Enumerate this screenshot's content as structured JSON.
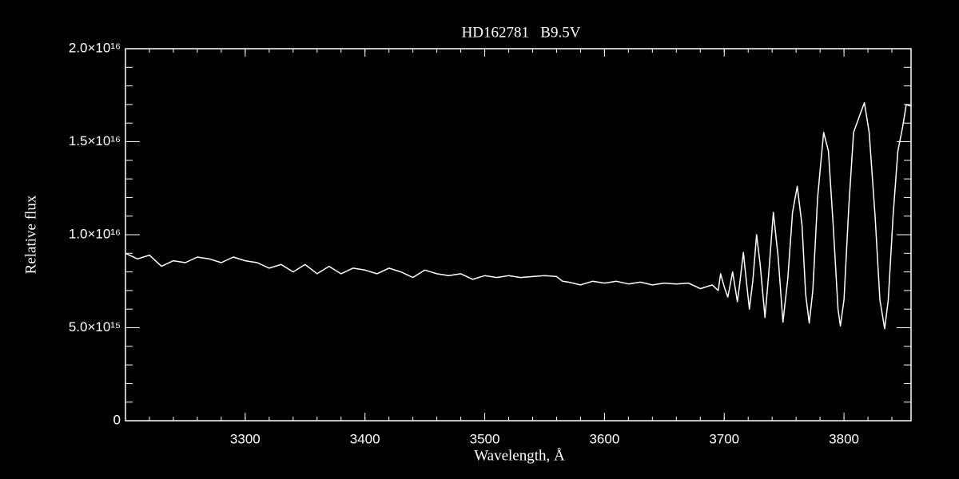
{
  "chart_data": {
    "type": "line",
    "title": "HD162781   B9.5V",
    "x_label": "Wavelength, Å",
    "y_label": "Relative flux",
    "xlim": [
      3200,
      3856
    ],
    "ylim": [
      0,
      2e+16
    ],
    "xticks": [
      3300,
      3400,
      3500,
      3600,
      3700,
      3800
    ],
    "yticks": [
      0,
      {
        "value": 5000000000000000.0,
        "label": "5.0×10¹⁵"
      },
      {
        "value": 1e+16,
        "label": "1.0×10¹⁶"
      },
      {
        "value": 1.5e+16,
        "label": "1.5×10¹⁶"
      },
      {
        "value": 2e+16,
        "label": "2.0×10¹⁶"
      }
    ],
    "x": [
      3200,
      3210,
      3220,
      3230,
      3240,
      3250,
      3260,
      3270,
      3280,
      3290,
      3300,
      3310,
      3320,
      3330,
      3340,
      3350,
      3360,
      3370,
      3380,
      3390,
      3400,
      3410,
      3420,
      3430,
      3440,
      3450,
      3460,
      3470,
      3480,
      3490,
      3500,
      3510,
      3520,
      3530,
      3540,
      3550,
      3560,
      3565,
      3570,
      3580,
      3590,
      3600,
      3610,
      3620,
      3630,
      3640,
      3650,
      3660,
      3670,
      3680,
      3690,
      3695,
      3697,
      3700,
      3703,
      3705,
      3707,
      3709,
      3711,
      3713,
      3716,
      3718,
      3721,
      3724,
      3727,
      3730,
      3734,
      3737,
      3741,
      3745,
      3749,
      3753,
      3757,
      3761,
      3765,
      3768,
      3771,
      3774,
      3778,
      3783,
      3787,
      3791,
      3795,
      3797,
      3800,
      3804,
      3808,
      3813,
      3817,
      3821,
      3826,
      3830,
      3834,
      3837,
      3841,
      3845,
      3849,
      3852,
      3856
    ],
    "series": [
      {
        "name": "HD162781",
        "color": "#ffffff",
        "values": [
          9000000000000000.0,
          8700000000000000.0,
          8900000000000000.0,
          8300000000000000.0,
          8600000000000000.0,
          8500000000000000.0,
          8800000000000000.0,
          8700000000000000.0,
          8500000000000000.0,
          8800000000000000.0,
          8600000000000000.0,
          8500000000000000.0,
          8200000000000000.0,
          8400000000000000.0,
          8000000000000000.0,
          8400000000000000.0,
          7900000000000000.0,
          8300000000000000.0,
          7900000000000000.0,
          8200000000000000.0,
          8100000000000000.0,
          7900000000000000.0,
          8200000000000000.0,
          8000000000000000.0,
          7700000000000000.0,
          8100000000000000.0,
          7900000000000000.0,
          7800000000000000.0,
          7900000000000000.0,
          7600000000000000.0,
          7800000000000000.0,
          7700000000000000.0,
          7800000000000000.0,
          7700000000000000.0,
          7750000000000000.0,
          7800000000000000.0,
          7750000000000000.0,
          7500000000000000.0,
          7450000000000000.0,
          7300000000000000.0,
          7500000000000000.0,
          7400000000000000.0,
          7500000000000000.0,
          7350000000000000.0,
          7450000000000000.0,
          7300000000000000.0,
          7400000000000000.0,
          7350000000000000.0,
          7400000000000000.0,
          7100000000000000.0,
          7300000000000000.0,
          7000000000000000.0,
          7900000000000000.0,
          7200000000000000.0,
          6650000000000000.0,
          7300000000000000.0,
          8000000000000000.0,
          7200000000000000.0,
          6400000000000000.0,
          7400000000000000.0,
          9050000000000000.0,
          7800000000000000.0,
          6000000000000000.0,
          7600000000000000.0,
          1e+16,
          8400000000000000.0,
          5550000000000000.0,
          7800000000000000.0,
          1.12e+16,
          8800000000000000.0,
          5300000000000000.0,
          7600000000000000.0,
          1.12e+16,
          1.26e+16,
          1.05e+16,
          6800000000000000.0,
          5250000000000000.0,
          7000000000000000.0,
          1.2e+16,
          1.55e+16,
          1.45e+16,
          1.05e+16,
          6000000000000000.0,
          5100000000000000.0,
          6500000000000000.0,
          1.15e+16,
          1.55e+16,
          1.64e+16,
          1.71e+16,
          1.55e+16,
          1.1e+16,
          6500000000000000.0,
          4950000000000000.0,
          6500000000000000.0,
          1.1e+16,
          1.45e+16,
          1.58e+16,
          1.7e+16,
          1.69e+16
        ]
      }
    ]
  }
}
